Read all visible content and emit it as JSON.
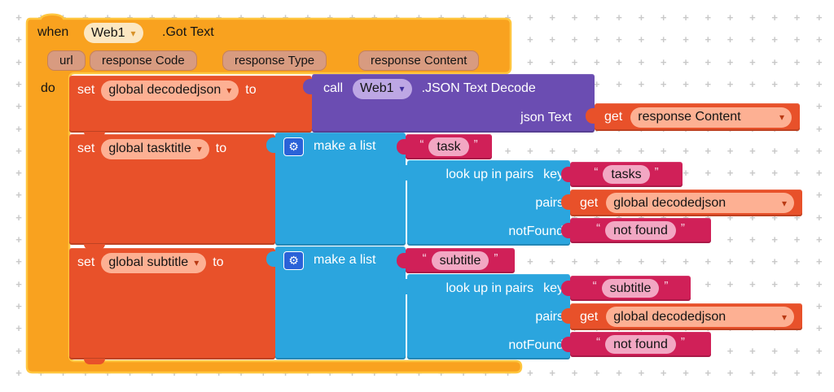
{
  "workspace": {
    "grid_glyph": "+"
  },
  "colors": {
    "canvas": "#FFFFFF",
    "grid": "#C9C9C9",
    "label_light": "#FFFFFF",
    "label_dark": "#141414",
    "event": "#F9A21F",
    "event_border": "#FFC63F",
    "event_field": "#FCE7C2",
    "event_arrow": "#D8922A",
    "variable": "#E8512A",
    "variable_field": "#FDB093",
    "variable_arrow": "#B93A14",
    "procedure": "#6B4DB2",
    "procedure_field": "#BDA7E4",
    "procedure_arrow": "#41309B",
    "list": "#2BA5DE",
    "mutator": "#2A62D8",
    "text_block": "#D02058",
    "text_field": "#F2A7C3",
    "text_quote": "#F7D9E6",
    "param_badge": "#D89B80",
    "param_badge_border": "#C68159"
  },
  "when_block": {
    "keyword": "when",
    "component": "Web1",
    "event_name": ".Got Text",
    "params": [
      "url",
      "response Code",
      "response Type",
      "response Content"
    ],
    "do_label": "do"
  },
  "set_decodedjson": {
    "set": "set",
    "variable": "global decodedjson",
    "to": "to"
  },
  "call_block": {
    "call": "call",
    "component": "Web1",
    "method": ".JSON Text Decode",
    "arg_label": "json Text"
  },
  "get_response_content": {
    "get": "get",
    "variable": "response Content"
  },
  "set_tasktitle": {
    "set": "set",
    "variable": "global tasktitle",
    "to": "to"
  },
  "make_list_1": {
    "label": "make a list"
  },
  "text_task": {
    "open_quote": "“",
    "value": "task",
    "close_quote": "”"
  },
  "lookup_1": {
    "main_label": "look up in pairs",
    "key_label": "key",
    "pairs_label": "pairs",
    "notfound_label": "notFound"
  },
  "text_tasks": {
    "open_quote": "“",
    "value": "tasks",
    "close_quote": "”"
  },
  "get_decodedjson_1": {
    "get": "get",
    "variable": "global decodedjson"
  },
  "text_notfound_1": {
    "open_quote": "“",
    "value": "not found",
    "close_quote": "”"
  },
  "set_subtitle": {
    "set": "set",
    "variable": "global subtitle",
    "to": "to"
  },
  "make_list_2": {
    "label": "make a list"
  },
  "text_subtitle_item": {
    "open_quote": "“",
    "value": "subtitle",
    "close_quote": "”"
  },
  "lookup_2": {
    "main_label": "look up in pairs",
    "key_label": "key",
    "pairs_label": "pairs",
    "notfound_label": "notFound"
  },
  "text_subtitle_key": {
    "open_quote": "“",
    "value": "subtitle",
    "close_quote": "”"
  },
  "get_decodedjson_2": {
    "get": "get",
    "variable": "global decodedjson"
  },
  "text_notfound_2": {
    "open_quote": "“",
    "value": "not found",
    "close_quote": "”"
  }
}
